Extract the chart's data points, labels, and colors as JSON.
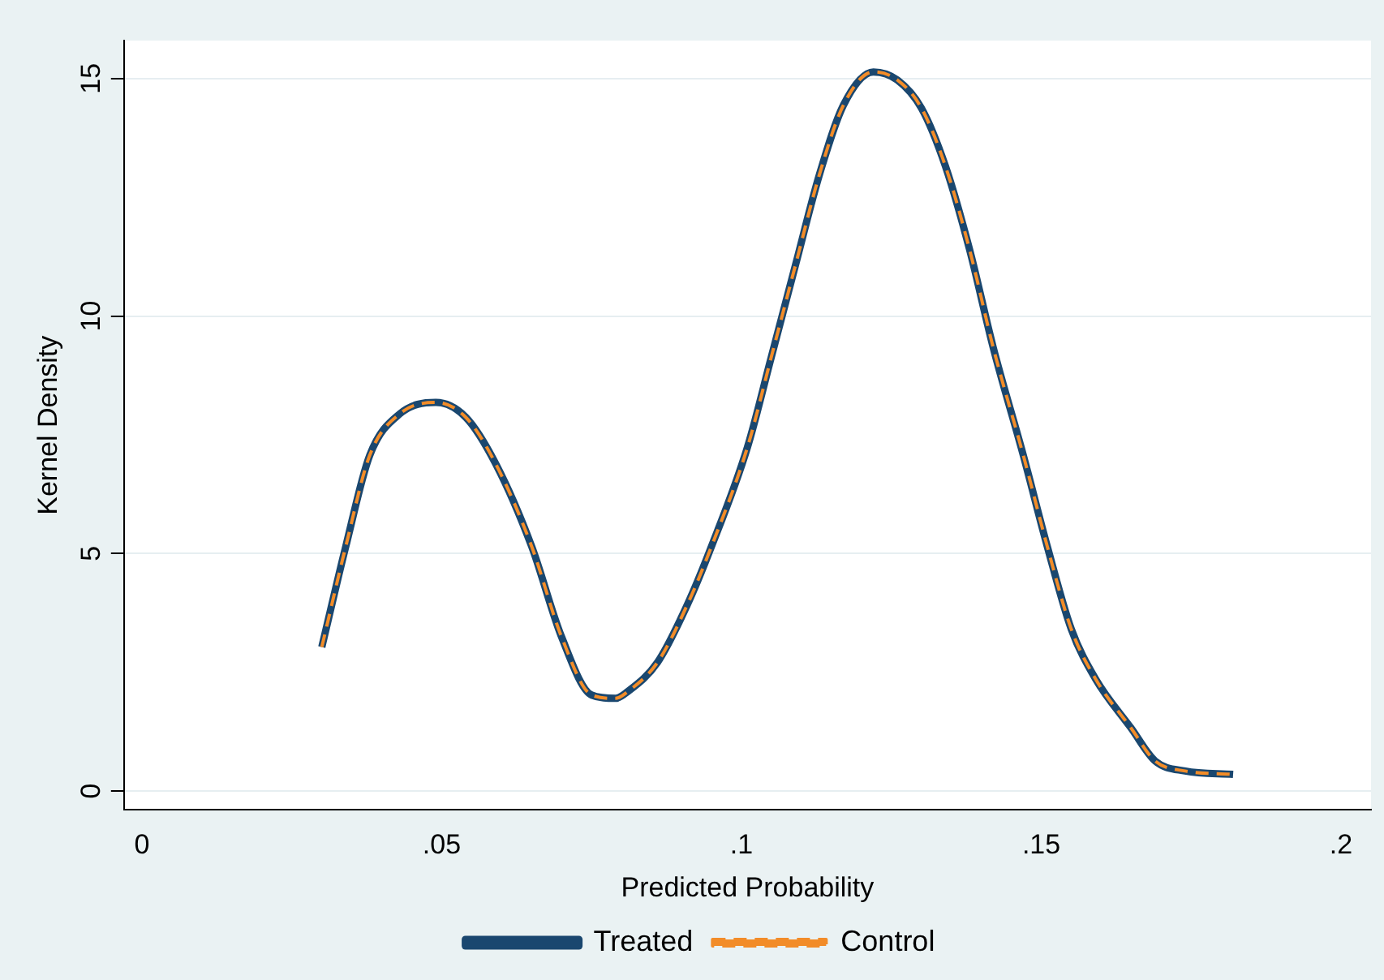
{
  "chart_data": {
    "type": "line",
    "xlabel": "Predicted Probability",
    "ylabel": "Kernel Density",
    "x": [
      0.03,
      0.034,
      0.038,
      0.043,
      0.049,
      0.054,
      0.059,
      0.065,
      0.07,
      0.075,
      0.079,
      0.081,
      0.086,
      0.091,
      0.095,
      0.101,
      0.105,
      0.109,
      0.113,
      0.117,
      0.122,
      0.126,
      0.13,
      0.134,
      0.138,
      0.142,
      0.147,
      0.151,
      0.155,
      0.159,
      0.165,
      0.169,
      0.174,
      0.182
    ],
    "series": [
      {
        "name": "Treated",
        "color": "#1a476f",
        "line_style": "solid",
        "values": [
          3.03,
          5.15,
          7.07,
          7.94,
          8.18,
          7.87,
          6.89,
          5.15,
          3.24,
          2.02,
          1.95,
          2.09,
          2.71,
          3.93,
          5.15,
          7.24,
          9.15,
          11.07,
          12.98,
          14.44,
          15.14,
          14.97,
          14.38,
          13.16,
          11.42,
          9.33,
          7.07,
          5.15,
          3.41,
          2.37,
          1.32,
          0.63,
          0.42,
          0.35
        ]
      },
      {
        "name": "Control",
        "color": "#f28c28",
        "line_style": "dashed",
        "values": [
          3.03,
          5.15,
          7.07,
          7.94,
          8.18,
          7.87,
          6.89,
          5.15,
          3.24,
          2.02,
          1.95,
          2.09,
          2.71,
          3.93,
          5.15,
          7.24,
          9.15,
          11.07,
          12.98,
          14.44,
          15.14,
          14.97,
          14.38,
          13.16,
          11.42,
          9.33,
          7.07,
          5.15,
          3.41,
          2.37,
          1.32,
          0.63,
          0.42,
          0.35
        ]
      }
    ],
    "xlim": [
      -0.003,
      0.205
    ],
    "xticks": [
      0,
      {
        "value": 0.05,
        "label": ".05"
      },
      {
        "value": 0.1,
        "label": ".1"
      },
      {
        "value": 0.15,
        "label": ".15"
      },
      {
        "value": 0.2,
        "label": ".2"
      }
    ],
    "ylim": [
      -0.4,
      15.8
    ],
    "yticks": [
      0,
      5,
      10,
      15
    ],
    "grid": "y",
    "legend": "bottom"
  }
}
